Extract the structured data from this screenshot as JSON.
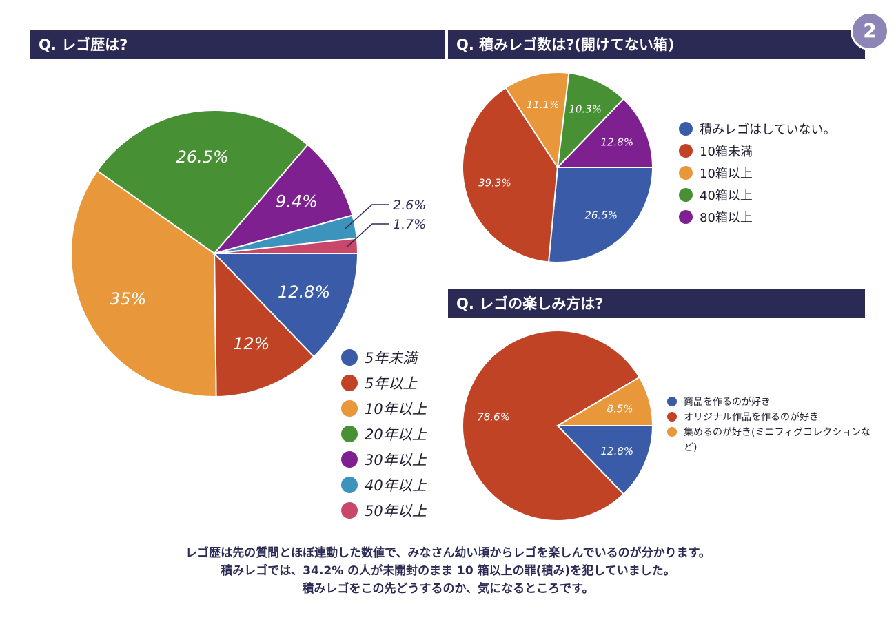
{
  "page_number": "2",
  "chart_data": [
    {
      "type": "pie",
      "title": "Q. レゴ歴は?",
      "categories": [
        "5年未満",
        "5年以上",
        "10年以上",
        "20年以上",
        "30年以上",
        "40年以上",
        "50年以上"
      ],
      "values": [
        12.8,
        12,
        35,
        26.5,
        9.4,
        2.6,
        1.7
      ],
      "labels": [
        "12.8%",
        "12%",
        "35%",
        "26.5%",
        "9.4%",
        "2.6%",
        "1.7%"
      ],
      "colors": [
        "#3a5ca8",
        "#c04326",
        "#e8973a",
        "#479034",
        "#7f2090",
        "#3c94bd",
        "#c8476b"
      ],
      "legend": "right-bottom"
    },
    {
      "type": "pie",
      "title": "Q. 積みレゴ数は?(開けてない箱)",
      "categories": [
        "積みレゴはしていない。",
        "10箱未満",
        "10箱以上",
        "40箱以上",
        "80箱以上"
      ],
      "values": [
        26.5,
        39.3,
        11.1,
        10.3,
        12.8
      ],
      "labels": [
        "26.5%",
        "39.3%",
        "11.1%",
        "10.3%",
        "12.8%"
      ],
      "colors": [
        "#3a5ca8",
        "#c04326",
        "#e8973a",
        "#479034",
        "#7f2090"
      ],
      "legend": "right"
    },
    {
      "type": "pie",
      "title": "Q. レゴの楽しみ方は?",
      "categories": [
        "商品を作るのが好き",
        "オリジナル作品を作るのが好き",
        "集めるのが好き(ミニフィグコレクションなど)"
      ],
      "values": [
        12.8,
        78.6,
        8.5
      ],
      "labels": [
        "12.8%",
        "78.6%",
        "8.5%"
      ],
      "colors": [
        "#3a5ca8",
        "#c04326",
        "#e8973a"
      ],
      "legend": "right"
    }
  ],
  "note": [
    "レゴ歴は先の質問とほぼ連動した数値で、みなさん幼い頃からレゴを楽しんでいるのが分かります。",
    "積みレゴでは、34.2% の人が未開封のまま 10 箱以上の罪(積み)を犯していました。",
    "積みレゴをこの先どうするのか、気になるところです。"
  ]
}
